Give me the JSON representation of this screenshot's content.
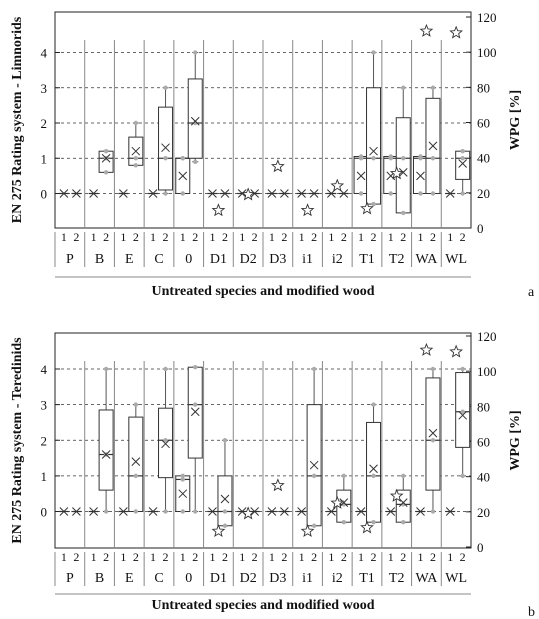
{
  "figure": {
    "panel_a_letter": "a",
    "panel_b_letter": "b"
  },
  "chart_data": [
    {
      "type": "box",
      "panel": "a",
      "ylabel_left": "EN 275 Rating system - Limnorids",
      "ylabel_right": "WPG [%]",
      "xlabel": "Untreated species and modified wood",
      "ylim_left": [
        -0.45,
        4.8
      ],
      "ylim_right": [
        0,
        120
      ],
      "left_ticks": [
        "0",
        "1",
        "2",
        "3",
        "4"
      ],
      "right_ticks": [
        "0",
        "20",
        "40",
        "60",
        "80",
        "100",
        "120"
      ],
      "grid": "horizontal dashed at 0,1,2,3,4",
      "groups": [
        {
          "label": "P",
          "subs": [
            {
              "sub": "1",
              "box": [
                0,
                0,
                0
              ],
              "mean": 0,
              "whisker": [
                0,
                0
              ]
            },
            {
              "sub": "2",
              "box": [
                0,
                0,
                0
              ],
              "mean": 0,
              "whisker": [
                0,
                0
              ]
            }
          ]
        },
        {
          "label": "B",
          "subs": [
            {
              "sub": "1",
              "box": [
                0,
                0,
                0
              ],
              "mean": 0,
              "whisker": [
                0,
                0
              ]
            },
            {
              "sub": "2",
              "box": [
                0.6,
                1.0,
                1.2
              ],
              "mean": 1.0,
              "whisker": [
                0.6,
                1.2
              ]
            }
          ]
        },
        {
          "label": "E",
          "subs": [
            {
              "sub": "1",
              "box": [
                0,
                0,
                0
              ],
              "mean": 0,
              "whisker": [
                0,
                0
              ]
            },
            {
              "sub": "2",
              "box": [
                0.8,
                1.0,
                1.6
              ],
              "mean": 1.2,
              "whisker": [
                0.8,
                2.0
              ]
            }
          ]
        },
        {
          "label": "C",
          "subs": [
            {
              "sub": "1",
              "box": [
                0,
                0,
                0
              ],
              "mean": 0,
              "whisker": [
                0,
                0
              ]
            },
            {
              "sub": "2",
              "box": [
                0.1,
                1.0,
                2.45
              ],
              "mean": 1.3,
              "whisker": [
                0,
                3.0
              ]
            }
          ]
        },
        {
          "label": "0",
          "subs": [
            {
              "sub": "1",
              "box": [
                0,
                1.0,
                1.0
              ],
              "mean": 0.5,
              "whisker": [
                0,
                1.0
              ]
            },
            {
              "sub": "2",
              "box": [
                1.0,
                2.0,
                3.25
              ],
              "mean": 2.05,
              "whisker": [
                0.9,
                4.0
              ]
            }
          ]
        },
        {
          "label": "D1",
          "subs": [
            {
              "sub": "1",
              "box": [
                0,
                0,
                0
              ],
              "mean": 0,
              "whisker": [
                0,
                0
              ]
            },
            {
              "sub": "2",
              "box": [
                0,
                0,
                0
              ],
              "mean": 0,
              "whisker": [
                0,
                0
              ]
            }
          ]
        },
        {
          "label": "D2",
          "subs": [
            {
              "sub": "1",
              "box": [
                0,
                0,
                0
              ],
              "mean": 0,
              "whisker": [
                0,
                0
              ]
            },
            {
              "sub": "2",
              "box": [
                0,
                0,
                0
              ],
              "mean": 0,
              "whisker": [
                0,
                0
              ]
            }
          ]
        },
        {
          "label": "D3",
          "subs": [
            {
              "sub": "1",
              "box": [
                0,
                0,
                0
              ],
              "mean": 0,
              "whisker": [
                0,
                0
              ]
            },
            {
              "sub": "2",
              "box": [
                0,
                0,
                0
              ],
              "mean": 0,
              "whisker": [
                0,
                0
              ]
            }
          ]
        },
        {
          "label": "i1",
          "subs": [
            {
              "sub": "1",
              "box": [
                0,
                0,
                0
              ],
              "mean": 0,
              "whisker": [
                0,
                0
              ]
            },
            {
              "sub": "2",
              "box": [
                0,
                0,
                0
              ],
              "mean": 0,
              "whisker": [
                0,
                0
              ]
            }
          ]
        },
        {
          "label": "i2",
          "subs": [
            {
              "sub": "1",
              "box": [
                0,
                0,
                0
              ],
              "mean": 0,
              "whisker": [
                0,
                0
              ]
            },
            {
              "sub": "2",
              "box": [
                0,
                0,
                0
              ],
              "mean": 0,
              "whisker": [
                0,
                0
              ]
            }
          ]
        },
        {
          "label": "T1",
          "subs": [
            {
              "sub": "1",
              "box": [
                0,
                1.0,
                1.05
              ],
              "mean": 0.5,
              "whisker": [
                0,
                1.05
              ]
            },
            {
              "sub": "2",
              "box": [
                -0.3,
                1.0,
                3.0
              ],
              "mean": 1.2,
              "whisker": [
                -0.3,
                4.0
              ]
            }
          ]
        },
        {
          "label": "T2",
          "subs": [
            {
              "sub": "1",
              "box": [
                0,
                1.0,
                1.05
              ],
              "mean": 0.5,
              "whisker": [
                0,
                1.05
              ]
            },
            {
              "sub": "2",
              "box": [
                -0.55,
                1.0,
                2.15
              ],
              "mean": 0.6,
              "whisker": [
                -0.55,
                3.0
              ]
            }
          ]
        },
        {
          "label": "WA",
          "subs": [
            {
              "sub": "1",
              "box": [
                0,
                1.0,
                1.05
              ],
              "mean": 0.5,
              "whisker": [
                0,
                1.05
              ]
            },
            {
              "sub": "2",
              "box": [
                0,
                1.0,
                2.7
              ],
              "mean": 1.35,
              "whisker": [
                0,
                3.0
              ]
            }
          ]
        },
        {
          "label": "WL",
          "subs": [
            {
              "sub": "1",
              "box": [
                0,
                0,
                0
              ],
              "mean": 0,
              "whisker": [
                0,
                0
              ]
            },
            {
              "sub": "2",
              "box": [
                0.4,
                1.0,
                1.2
              ],
              "mean": 0.85,
              "whisker": [
                0,
                1.2
              ]
            }
          ]
        }
      ],
      "wpg_stars": [
        {
          "group": "D1",
          "wpg": 10
        },
        {
          "group": "D2",
          "wpg": 19
        },
        {
          "group": "D3",
          "wpg": 35
        },
        {
          "group": "i1",
          "wpg": 10
        },
        {
          "group": "i2",
          "wpg": 24
        },
        {
          "group": "T1",
          "wpg": 11
        },
        {
          "group": "T2",
          "wpg": 31
        },
        {
          "group": "WA",
          "wpg": 112
        },
        {
          "group": "WL",
          "wpg": 111
        }
      ]
    },
    {
      "type": "box",
      "panel": "b",
      "ylabel_left": "EN 275 Rating system - Teredinids",
      "ylabel_right": "WPG [%]",
      "xlabel": "Untreated species and modified wood",
      "ylim_left": [
        -0.45,
        4.8
      ],
      "ylim_right": [
        0,
        120
      ],
      "left_ticks": [
        "0",
        "1",
        "2",
        "3",
        "4"
      ],
      "right_ticks": [
        "0",
        "20",
        "40",
        "60",
        "80",
        "100",
        "120"
      ],
      "grid": "horizontal dashed at 0,1,2,3,4",
      "groups": [
        {
          "label": "P",
          "subs": [
            {
              "sub": "1",
              "box": [
                0,
                0,
                0
              ],
              "mean": 0,
              "whisker": [
                0,
                0
              ]
            },
            {
              "sub": "2",
              "box": [
                0,
                0,
                0
              ],
              "mean": 0,
              "whisker": [
                0,
                0
              ]
            }
          ]
        },
        {
          "label": "B",
          "subs": [
            {
              "sub": "1",
              "box": [
                0,
                0,
                0
              ],
              "mean": 0,
              "whisker": [
                0,
                0
              ]
            },
            {
              "sub": "2",
              "box": [
                0.6,
                1.6,
                2.85
              ],
              "mean": 1.6,
              "whisker": [
                0,
                4.0
              ]
            }
          ]
        },
        {
          "label": "E",
          "subs": [
            {
              "sub": "1",
              "box": [
                0,
                0,
                0
              ],
              "mean": 0,
              "whisker": [
                0,
                0
              ]
            },
            {
              "sub": "2",
              "box": [
                0,
                1.0,
                2.65
              ],
              "mean": 1.4,
              "whisker": [
                0,
                3.0
              ]
            }
          ]
        },
        {
          "label": "C",
          "subs": [
            {
              "sub": "1",
              "box": [
                0,
                0,
                0
              ],
              "mean": 0,
              "whisker": [
                0,
                0
              ]
            },
            {
              "sub": "2",
              "box": [
                0.95,
                2.0,
                2.9
              ],
              "mean": 1.9,
              "whisker": [
                0,
                4.0
              ]
            }
          ]
        },
        {
          "label": "0",
          "subs": [
            {
              "sub": "1",
              "box": [
                0,
                0.9,
                1.0
              ],
              "mean": 0.5,
              "whisker": [
                0,
                1.0
              ]
            },
            {
              "sub": "2",
              "box": [
                1.5,
                3.0,
                4.05
              ],
              "mean": 2.8,
              "whisker": [
                0,
                4.05
              ]
            }
          ]
        },
        {
          "label": "D1",
          "subs": [
            {
              "sub": "1",
              "box": [
                0,
                0,
                0
              ],
              "mean": 0,
              "whisker": [
                0,
                0
              ]
            },
            {
              "sub": "2",
              "box": [
                -0.4,
                0,
                1.0
              ],
              "mean": 0.35,
              "whisker": [
                -0.4,
                2.0
              ]
            }
          ]
        },
        {
          "label": "D2",
          "subs": [
            {
              "sub": "1",
              "box": [
                0,
                0,
                0
              ],
              "mean": 0,
              "whisker": [
                0,
                0
              ]
            },
            {
              "sub": "2",
              "box": [
                0,
                0,
                0
              ],
              "mean": 0,
              "whisker": [
                0,
                0
              ]
            }
          ]
        },
        {
          "label": "D3",
          "subs": [
            {
              "sub": "1",
              "box": [
                0,
                0,
                0
              ],
              "mean": 0,
              "whisker": [
                0,
                0
              ]
            },
            {
              "sub": "2",
              "box": [
                0,
                0,
                0
              ],
              "mean": 0,
              "whisker": [
                0,
                0
              ]
            }
          ]
        },
        {
          "label": "i1",
          "subs": [
            {
              "sub": "1",
              "box": [
                0,
                0,
                0
              ],
              "mean": 0,
              "whisker": [
                0,
                0
              ]
            },
            {
              "sub": "2",
              "box": [
                -0.4,
                1.0,
                3.0
              ],
              "mean": 1.3,
              "whisker": [
                -0.4,
                4.0
              ]
            }
          ]
        },
        {
          "label": "i2",
          "subs": [
            {
              "sub": "1",
              "box": [
                0,
                0,
                0
              ],
              "mean": 0,
              "whisker": [
                0,
                0
              ]
            },
            {
              "sub": "2",
              "box": [
                -0.3,
                0.2,
                0.6
              ],
              "mean": 0.25,
              "whisker": [
                -0.3,
                1.0
              ]
            }
          ]
        },
        {
          "label": "T1",
          "subs": [
            {
              "sub": "1",
              "box": [
                0,
                0,
                0
              ],
              "mean": 0,
              "whisker": [
                0,
                0
              ]
            },
            {
              "sub": "2",
              "box": [
                -0.3,
                1.0,
                2.5
              ],
              "mean": 1.2,
              "whisker": [
                -0.3,
                3.0
              ]
            }
          ]
        },
        {
          "label": "T2",
          "subs": [
            {
              "sub": "1",
              "box": [
                0,
                0,
                0
              ],
              "mean": 0,
              "whisker": [
                0,
                0
              ]
            },
            {
              "sub": "2",
              "box": [
                -0.3,
                0.2,
                0.6
              ],
              "mean": 0.25,
              "whisker": [
                -0.3,
                1.0
              ]
            }
          ]
        },
        {
          "label": "WA",
          "subs": [
            {
              "sub": "1",
              "box": [
                0,
                0,
                0
              ],
              "mean": 0,
              "whisker": [
                0,
                0
              ]
            },
            {
              "sub": "2",
              "box": [
                0.6,
                2.0,
                3.75
              ],
              "mean": 2.2,
              "whisker": [
                0,
                4.0
              ]
            }
          ]
        },
        {
          "label": "WL",
          "subs": [
            {
              "sub": "1",
              "box": [
                0,
                0,
                0
              ],
              "mean": 0,
              "whisker": [
                0,
                0
              ]
            },
            {
              "sub": "2",
              "box": [
                1.8,
                2.8,
                3.9
              ],
              "mean": 2.7,
              "whisker": [
                1.0,
                4.0
              ]
            }
          ]
        }
      ],
      "wpg_stars": [
        {
          "group": "D1",
          "wpg": 9
        },
        {
          "group": "D2",
          "wpg": 19
        },
        {
          "group": "D3",
          "wpg": 35
        },
        {
          "group": "i1",
          "wpg": 9
        },
        {
          "group": "i2",
          "wpg": 25
        },
        {
          "group": "T1",
          "wpg": 11
        },
        {
          "group": "T2",
          "wpg": 29
        },
        {
          "group": "WA",
          "wpg": 112
        },
        {
          "group": "WL",
          "wpg": 111
        }
      ]
    }
  ]
}
